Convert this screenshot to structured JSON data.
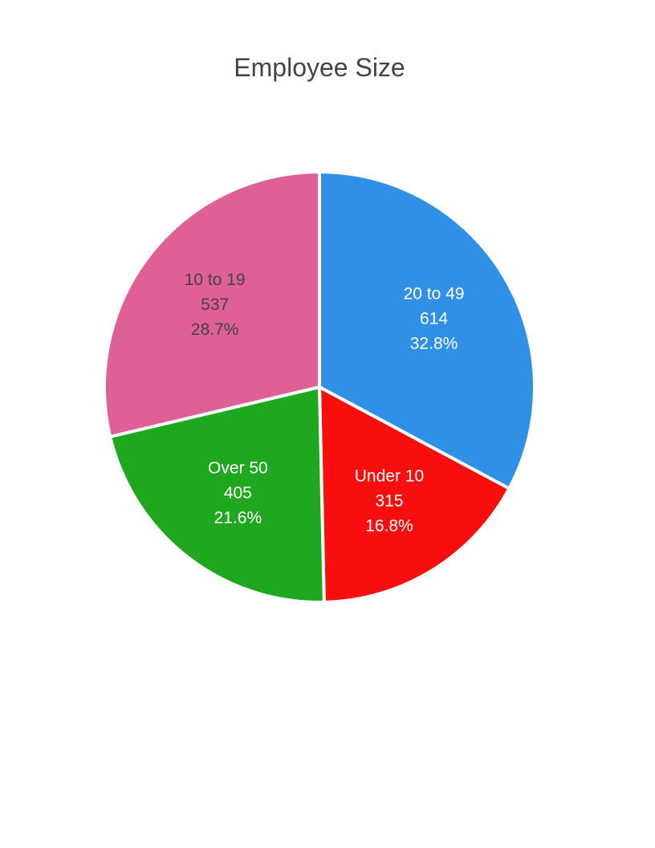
{
  "chart_data": {
    "type": "pie",
    "title": "Employee Size",
    "slices": [
      {
        "label": "20 to 49",
        "value": 614,
        "percent": "32.8%",
        "color": "#3090E6",
        "text_color": "#ffffff"
      },
      {
        "label": "Under 10",
        "value": 315,
        "percent": "16.8%",
        "color": "#F90E0E",
        "text_color": "#ffffff"
      },
      {
        "label": "Over 50",
        "value": 405,
        "percent": "21.6%",
        "color": "#20A720",
        "text_color": "#ffffff"
      },
      {
        "label": "10 to 19",
        "value": 537,
        "percent": "28.7%",
        "color": "#DE6096",
        "text_color": "#444444"
      }
    ],
    "start_angle": "12 o'clock",
    "direction": "clockwise",
    "legend": "none",
    "slice_border_color": "#ffffff"
  }
}
